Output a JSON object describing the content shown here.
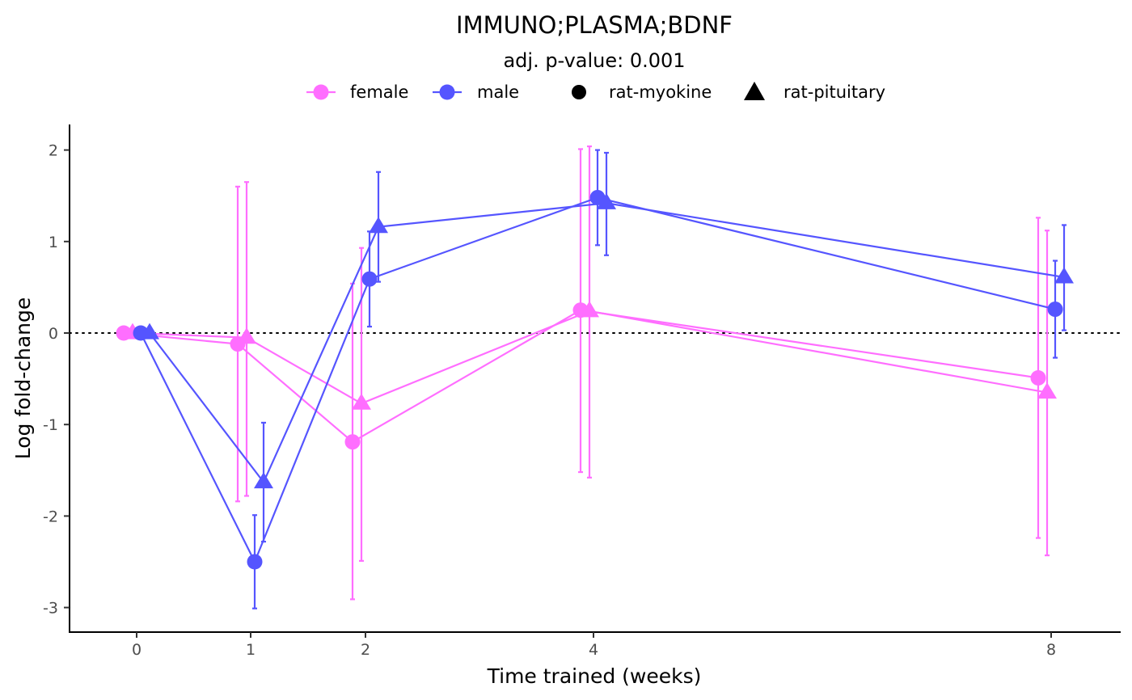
{
  "chart_data": {
    "type": "line",
    "title": "IMMUNO;PLASMA;BDNF",
    "subtitle": "adj. p-value: 0.001",
    "xlabel": "Time trained (weeks)",
    "ylabel": "Log fold-change",
    "x_ticks": [
      "0",
      "1",
      "2",
      "4",
      "8"
    ],
    "y_ticks": [
      "-3",
      "-2",
      "-1",
      "0",
      "1",
      "2"
    ],
    "ylim": [
      -3.25,
      2.25
    ],
    "reference_line": 0,
    "legend": {
      "position": "top",
      "color_entries": [
        {
          "label": "female",
          "color": "#ff6eff"
        },
        {
          "label": "male",
          "color": "#5555ff"
        }
      ],
      "shape_entries": [
        {
          "label": "rat-myokine",
          "shape": "circle"
        },
        {
          "label": "rat-pituitary",
          "shape": "triangle"
        }
      ]
    },
    "series": [
      {
        "sex": "female",
        "dataset": "rat-myokine",
        "color": "#ff6eff",
        "shape": "circle",
        "x": [
          "0",
          "1",
          "2",
          "4",
          "8"
        ],
        "values": [
          0,
          -0.12,
          -1.19,
          0.25,
          -0.49
        ],
        "lower": [
          0,
          -1.84,
          -2.91,
          -1.52,
          -2.24
        ],
        "upper": [
          0,
          1.6,
          0.54,
          2.01,
          1.26
        ]
      },
      {
        "sex": "female",
        "dataset": "rat-pituitary",
        "color": "#ff6eff",
        "shape": "triangle",
        "x": [
          "0",
          "1",
          "2",
          "4",
          "8"
        ],
        "values": [
          0,
          -0.05,
          -0.77,
          0.24,
          -0.65
        ],
        "lower": [
          0,
          -1.78,
          -2.49,
          -1.58,
          -2.43
        ],
        "upper": [
          0,
          1.65,
          0.93,
          2.04,
          1.12
        ]
      },
      {
        "sex": "male",
        "dataset": "rat-myokine",
        "color": "#5555ff",
        "shape": "circle",
        "x": [
          "0",
          "1",
          "2",
          "4",
          "8"
        ],
        "values": [
          0,
          -2.5,
          0.59,
          1.48,
          0.26
        ],
        "lower": [
          0,
          -3.01,
          0.07,
          0.96,
          -0.27
        ],
        "upper": [
          0,
          -1.99,
          1.11,
          2.0,
          0.79
        ]
      },
      {
        "sex": "male",
        "dataset": "rat-pituitary",
        "color": "#5555ff",
        "shape": "triangle",
        "x": [
          "0",
          "1",
          "2",
          "4",
          "8"
        ],
        "values": [
          0,
          -1.63,
          1.16,
          1.42,
          0.61
        ],
        "lower": [
          0,
          -2.28,
          0.56,
          0.85,
          0.03
        ],
        "upper": [
          0,
          -0.98,
          1.76,
          1.97,
          1.18
        ]
      }
    ]
  }
}
